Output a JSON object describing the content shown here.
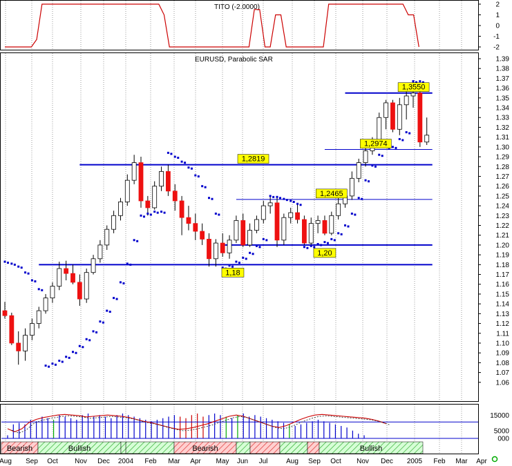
{
  "colors": {
    "up_candle": "#ffffff",
    "down_candle": "#ee1111",
    "candle_outline": "#000000",
    "sar_dots": "#0000cc",
    "support_lines": "#0000cc",
    "label_bg": "#ffff00",
    "tito_line": "#cc0000",
    "bearish_fill": "#ffb0b0",
    "bullish_fill": "#b0ffb0",
    "grid": "#9a9a9a",
    "zone_corner_marker": "#00aa00"
  },
  "chart_data": [
    {
      "type": "line",
      "title": "TITO (-2.0000)",
      "ylim": [
        -2,
        2
      ],
      "yticks": [
        "2",
        "1",
        "0",
        "-1",
        "-2"
      ],
      "series": [
        {
          "values": [
            -2,
            -2,
            -2,
            -2,
            -2,
            -2,
            -1.3,
            2,
            2,
            2,
            2,
            2,
            2,
            2,
            2,
            2,
            2,
            2,
            2,
            2,
            2,
            2,
            2,
            2,
            2,
            2,
            2,
            2,
            2,
            2,
            1.0,
            -2,
            -2,
            -2,
            -2,
            -2,
            -2,
            -2,
            -2,
            -2,
            -2,
            -2,
            -2,
            -2,
            -2,
            -2,
            -2,
            1.5,
            1.5,
            -2,
            -2,
            1.0,
            1.0,
            -2,
            -2,
            -2,
            -2,
            -2,
            -2,
            -2,
            -2,
            2,
            2,
            2,
            2,
            2,
            2,
            2,
            2,
            2,
            2,
            2,
            2,
            2,
            2,
            2,
            1.0,
            1.0,
            -2
          ]
        }
      ]
    },
    {
      "type": "candlestick",
      "title": "EURUSD, Parabolic SAR",
      "ylim": [
        1.05,
        1.39
      ],
      "yticks": [
        "1.39",
        "1.38",
        "1.37",
        "1.36",
        "1.35",
        "1.34",
        "1.33",
        "1.32",
        "1.31",
        "1.30",
        "1.29",
        "1.28",
        "1.27",
        "1.26",
        "1.25",
        "1.24",
        "1.23",
        "1.22",
        "1.21",
        "1.20",
        "1.19",
        "1.18",
        "1.17",
        "1.16",
        "1.15",
        "1.14",
        "1.13",
        "1.12",
        "1.11",
        "1.10",
        "1.09",
        "1.08",
        "1.07",
        "1.06"
      ],
      "x_labels": [
        "Aug",
        "Sep",
        "Oct",
        "Nov",
        "Dec",
        "2004",
        "Feb",
        "Mar",
        "Apr",
        "May",
        "Jun",
        "Jul",
        "Aug",
        "Sep",
        "Oct",
        "Nov",
        "Dec",
        "2005",
        "Feb",
        "Mar",
        "Apr"
      ],
      "candles": [
        {
          "o": 1.133,
          "h": 1.142,
          "l": 1.125,
          "c": 1.128
        },
        {
          "o": 1.128,
          "h": 1.131,
          "l": 1.098,
          "c": 1.1
        },
        {
          "o": 1.1,
          "h": 1.112,
          "l": 1.078,
          "c": 1.092
        },
        {
          "o": 1.092,
          "h": 1.115,
          "l": 1.082,
          "c": 1.108
        },
        {
          "o": 1.108,
          "h": 1.125,
          "l": 1.103,
          "c": 1.12
        },
        {
          "o": 1.12,
          "h": 1.137,
          "l": 1.115,
          "c": 1.133
        },
        {
          "o": 1.133,
          "h": 1.15,
          "l": 1.13,
          "c": 1.146
        },
        {
          "o": 1.146,
          "h": 1.162,
          "l": 1.141,
          "c": 1.158
        },
        {
          "o": 1.158,
          "h": 1.183,
          "l": 1.154,
          "c": 1.176
        },
        {
          "o": 1.176,
          "h": 1.184,
          "l": 1.164,
          "c": 1.171
        },
        {
          "o": 1.171,
          "h": 1.18,
          "l": 1.16,
          "c": 1.162
        },
        {
          "o": 1.162,
          "h": 1.17,
          "l": 1.138,
          "c": 1.145
        },
        {
          "o": 1.145,
          "h": 1.176,
          "l": 1.141,
          "c": 1.172
        },
        {
          "o": 1.172,
          "h": 1.19,
          "l": 1.17,
          "c": 1.186
        },
        {
          "o": 1.186,
          "h": 1.205,
          "l": 1.182,
          "c": 1.2
        },
        {
          "o": 1.2,
          "h": 1.22,
          "l": 1.195,
          "c": 1.216
        },
        {
          "o": 1.216,
          "h": 1.235,
          "l": 1.212,
          "c": 1.23
        },
        {
          "o": 1.23,
          "h": 1.248,
          "l": 1.225,
          "c": 1.244
        },
        {
          "o": 1.244,
          "h": 1.272,
          "l": 1.24,
          "c": 1.266
        },
        {
          "o": 1.266,
          "h": 1.292,
          "l": 1.262,
          "c": 1.284
        },
        {
          "o": 1.284,
          "h": 1.29,
          "l": 1.238,
          "c": 1.245
        },
        {
          "o": 1.245,
          "h": 1.25,
          "l": 1.23,
          "c": 1.238
        },
        {
          "o": 1.238,
          "h": 1.265,
          "l": 1.236,
          "c": 1.26
        },
        {
          "o": 1.26,
          "h": 1.28,
          "l": 1.255,
          "c": 1.275
        },
        {
          "o": 1.275,
          "h": 1.282,
          "l": 1.25,
          "c": 1.255
        },
        {
          "o": 1.255,
          "h": 1.262,
          "l": 1.235,
          "c": 1.245
        },
        {
          "o": 1.245,
          "h": 1.25,
          "l": 1.21,
          "c": 1.228
        },
        {
          "o": 1.228,
          "h": 1.24,
          "l": 1.215,
          "c": 1.222
        },
        {
          "o": 1.222,
          "h": 1.232,
          "l": 1.205,
          "c": 1.214
        },
        {
          "o": 1.214,
          "h": 1.222,
          "l": 1.2,
          "c": 1.206
        },
        {
          "o": 1.206,
          "h": 1.212,
          "l": 1.178,
          "c": 1.186
        },
        {
          "o": 1.186,
          "h": 1.206,
          "l": 1.178,
          "c": 1.202
        },
        {
          "o": 1.202,
          "h": 1.212,
          "l": 1.188,
          "c": 1.192
        },
        {
          "o": 1.192,
          "h": 1.21,
          "l": 1.186,
          "c": 1.205
        },
        {
          "o": 1.205,
          "h": 1.23,
          "l": 1.202,
          "c": 1.225
        },
        {
          "o": 1.225,
          "h": 1.232,
          "l": 1.198,
          "c": 1.2
        },
        {
          "o": 1.2,
          "h": 1.222,
          "l": 1.198,
          "c": 1.215
        },
        {
          "o": 1.215,
          "h": 1.23,
          "l": 1.212,
          "c": 1.226
        },
        {
          "o": 1.226,
          "h": 1.245,
          "l": 1.222,
          "c": 1.24
        },
        {
          "o": 1.24,
          "h": 1.25,
          "l": 1.232,
          "c": 1.243
        },
        {
          "o": 1.243,
          "h": 1.248,
          "l": 1.198,
          "c": 1.205
        },
        {
          "o": 1.205,
          "h": 1.232,
          "l": 1.2,
          "c": 1.228
        },
        {
          "o": 1.228,
          "h": 1.238,
          "l": 1.222,
          "c": 1.233
        },
        {
          "o": 1.233,
          "h": 1.242,
          "l": 1.222,
          "c": 1.226
        },
        {
          "o": 1.226,
          "h": 1.23,
          "l": 1.2,
          "c": 1.202
        },
        {
          "o": 1.202,
          "h": 1.228,
          "l": 1.2,
          "c": 1.222
        },
        {
          "o": 1.222,
          "h": 1.23,
          "l": 1.212,
          "c": 1.225
        },
        {
          "o": 1.225,
          "h": 1.23,
          "l": 1.21,
          "c": 1.212
        },
        {
          "o": 1.212,
          "h": 1.234,
          "l": 1.21,
          "c": 1.23
        },
        {
          "o": 1.23,
          "h": 1.248,
          "l": 1.226,
          "c": 1.242
        },
        {
          "o": 1.242,
          "h": 1.255,
          "l": 1.238,
          "c": 1.25
        },
        {
          "o": 1.25,
          "h": 1.275,
          "l": 1.246,
          "c": 1.268
        },
        {
          "o": 1.268,
          "h": 1.288,
          "l": 1.264,
          "c": 1.284
        },
        {
          "o": 1.284,
          "h": 1.3,
          "l": 1.28,
          "c": 1.296
        },
        {
          "o": 1.296,
          "h": 1.31,
          "l": 1.292,
          "c": 1.304
        },
        {
          "o": 1.304,
          "h": 1.335,
          "l": 1.3,
          "c": 1.33
        },
        {
          "o": 1.33,
          "h": 1.348,
          "l": 1.318,
          "c": 1.345
        },
        {
          "o": 1.345,
          "h": 1.348,
          "l": 1.315,
          "c": 1.318
        },
        {
          "o": 1.318,
          "h": 1.35,
          "l": 1.312,
          "c": 1.343
        },
        {
          "o": 1.343,
          "h": 1.358,
          "l": 1.328,
          "c": 1.352
        },
        {
          "o": 1.352,
          "h": 1.367,
          "l": 1.34,
          "c": 1.355
        },
        {
          "o": 1.355,
          "h": 1.36,
          "l": 1.3,
          "c": 1.305
        },
        {
          "o": 1.305,
          "h": 1.33,
          "l": 1.302,
          "c": 1.312
        }
      ],
      "sar": [
        {
          "i": 0,
          "v": 1.183
        },
        {
          "i": 1,
          "v": 1.181
        },
        {
          "i": 2,
          "v": 1.178
        },
        {
          "i": 3,
          "v": 1.172
        },
        {
          "i": 4,
          "v": 1.164
        },
        {
          "i": 5,
          "v": 1.155
        },
        {
          "i": 6,
          "v": 1.077
        },
        {
          "i": 7,
          "v": 1.079
        },
        {
          "i": 8,
          "v": 1.082
        },
        {
          "i": 9,
          "v": 1.086
        },
        {
          "i": 10,
          "v": 1.091
        },
        {
          "i": 11,
          "v": 1.097
        },
        {
          "i": 12,
          "v": 1.104
        },
        {
          "i": 13,
          "v": 1.112
        },
        {
          "i": 14,
          "v": 1.122
        },
        {
          "i": 15,
          "v": 1.133
        },
        {
          "i": 16,
          "v": 1.146
        },
        {
          "i": 17,
          "v": 1.162
        },
        {
          "i": 18,
          "v": 1.181
        },
        {
          "i": 19,
          "v": 1.205
        },
        {
          "i": 20,
          "v": 1.23
        },
        {
          "i": 21,
          "v": 1.232
        },
        {
          "i": 22,
          "v": 1.234
        },
        {
          "i": 23,
          "v": 1.234
        },
        {
          "i": 24,
          "v": 1.294
        },
        {
          "i": 25,
          "v": 1.29
        },
        {
          "i": 26,
          "v": 1.285
        },
        {
          "i": 27,
          "v": 1.279
        },
        {
          "i": 28,
          "v": 1.271
        },
        {
          "i": 29,
          "v": 1.26
        },
        {
          "i": 30,
          "v": 1.248
        },
        {
          "i": 31,
          "v": 1.232
        },
        {
          "i": 32,
          "v": 1.177
        },
        {
          "i": 33,
          "v": 1.179
        },
        {
          "i": 34,
          "v": 1.183
        },
        {
          "i": 35,
          "v": 1.187
        },
        {
          "i": 36,
          "v": 1.192
        },
        {
          "i": 37,
          "v": 1.199
        },
        {
          "i": 38,
          "v": 1.206
        },
        {
          "i": 39,
          "v": 1.25
        },
        {
          "i": 40,
          "v": 1.249
        },
        {
          "i": 41,
          "v": 1.247
        },
        {
          "i": 42,
          "v": 1.245
        },
        {
          "i": 43,
          "v": 1.242
        },
        {
          "i": 44,
          "v": 1.198
        },
        {
          "i": 45,
          "v": 1.199
        },
        {
          "i": 46,
          "v": 1.201
        },
        {
          "i": 47,
          "v": 1.203
        },
        {
          "i": 48,
          "v": 1.206
        },
        {
          "i": 49,
          "v": 1.212
        },
        {
          "i": 50,
          "v": 1.22
        },
        {
          "i": 51,
          "v": 1.232
        },
        {
          "i": 52,
          "v": 1.248
        },
        {
          "i": 53,
          "v": 1.266
        },
        {
          "i": 54,
          "v": 1.281
        },
        {
          "i": 55,
          "v": 1.292
        },
        {
          "i": 56,
          "v": 1.3
        },
        {
          "i": 57,
          "v": 1.3
        },
        {
          "i": 58,
          "v": 1.308
        },
        {
          "i": 59,
          "v": 1.315
        },
        {
          "i": 60,
          "v": 1.367
        },
        {
          "i": 61,
          "v": 1.367
        }
      ],
      "levels": [
        {
          "value": 1.2819,
          "label": "1,2819",
          "from": 11,
          "to": 62,
          "thick": true
        },
        {
          "value": 1.2465,
          "label": "1,2465",
          "from": 34,
          "to": 62,
          "thick": false
        },
        {
          "value": 1.2,
          "label": "1,20",
          "from": 32,
          "to": 62,
          "thick": true
        },
        {
          "value": 1.18,
          "label": "1,18",
          "from": 5,
          "to": 62,
          "thick": true
        },
        {
          "value": 1.355,
          "label": "1,3550",
          "from": 50,
          "to": 62,
          "thick": true
        },
        {
          "value": 1.2974,
          "label": "1,2974",
          "from": 47,
          "to": 62,
          "thick": false
        }
      ]
    },
    {
      "type": "bar",
      "title": "",
      "yticks": [
        "15000",
        "5000",
        "000"
      ],
      "ylim": [
        0,
        20000
      ],
      "values": [
        2000,
        9000,
        10000,
        9000,
        12000,
        11000,
        14000,
        13000,
        12000,
        15000,
        14000,
        13000,
        12000,
        15000,
        16000,
        14000,
        15000,
        14000,
        13000,
        15000,
        16000,
        15000,
        14000,
        13000,
        12000,
        11000,
        12000,
        13000,
        14000,
        15000,
        14000,
        13000,
        15000,
        16000,
        14000,
        15000,
        16000,
        15000,
        14000,
        13000,
        15000,
        16000,
        14000,
        15000,
        14000,
        13000,
        12000,
        11000,
        10000,
        9000,
        8000,
        9000,
        10000,
        11000,
        12000,
        11000,
        10000,
        9000,
        8000,
        7000,
        5000,
        3000,
        2000
      ],
      "oscillator": [
        -1,
        -1.5,
        -1,
        0,
        0.5,
        0.8,
        1,
        1.2,
        1.3,
        1.2,
        1.1,
        0.9,
        1.0,
        1.1,
        1.2,
        1.1,
        1.0,
        0.8,
        0.5,
        0.2,
        0,
        -0.3,
        -0.6,
        -0.9,
        -1.1,
        -1.0,
        -0.8,
        -0.5,
        -0.2,
        0.2,
        0.6,
        1.0,
        1.2,
        1.0,
        0.6,
        0.2,
        -0.2,
        -0.6,
        -0.8,
        -0.5,
        0,
        0.5,
        0.9,
        1.2,
        1.3,
        1.2,
        1.1,
        1.0,
        0.9,
        0.8,
        0.7,
        0.5,
        0.2,
        -0.2
      ],
      "zones": [
        {
          "label": "Bearish",
          "type": "bearish"
        },
        {
          "label": "Bullish",
          "type": "bullish"
        },
        {
          "label": "",
          "type": "bullish"
        },
        {
          "label": "Bearish",
          "type": "bearish"
        },
        {
          "label": "",
          "type": "bullish"
        },
        {
          "label": "",
          "type": "bearish"
        },
        {
          "label": "",
          "type": "bullish"
        },
        {
          "label": "",
          "type": "bearish"
        },
        {
          "label": "Bullish",
          "type": "bullish"
        }
      ]
    }
  ]
}
